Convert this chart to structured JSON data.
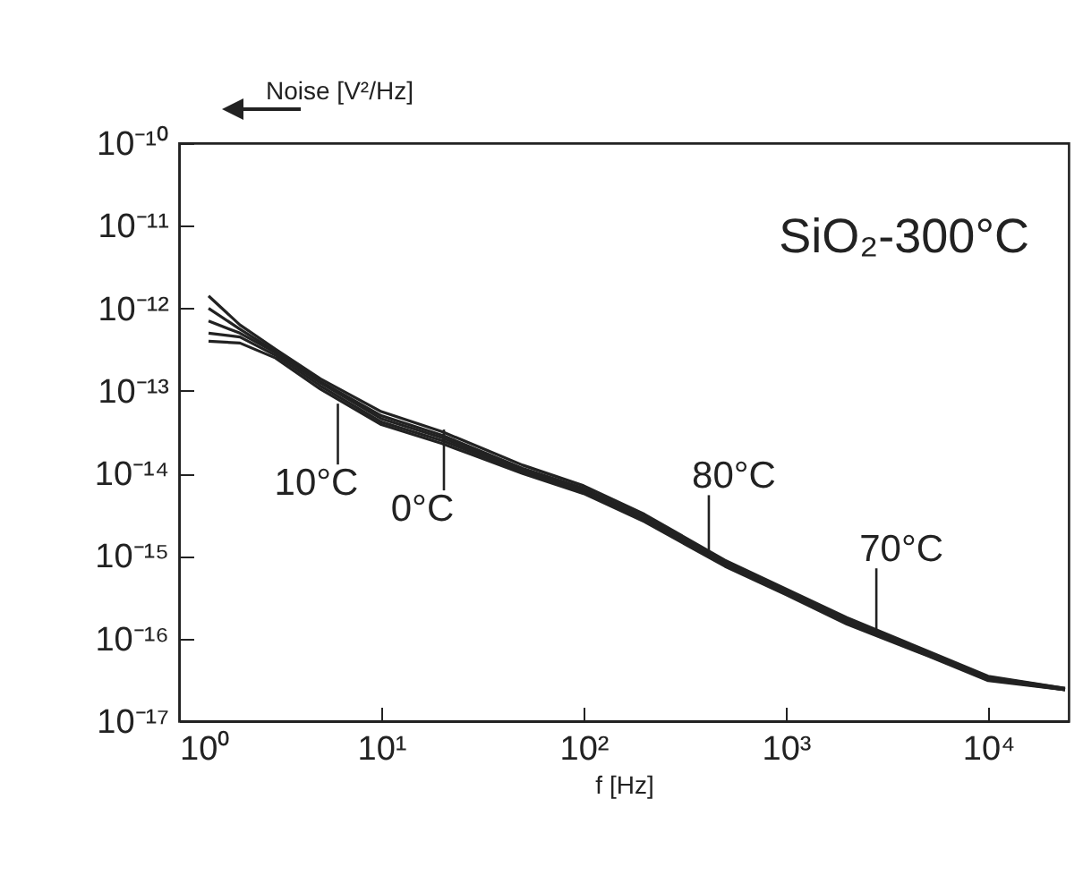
{
  "chart_data": {
    "type": "line",
    "xlabel": "f [Hz]",
    "ylabel": "Noise [V²/Hz]",
    "log": "xy",
    "grid": false,
    "legend": false,
    "marker": "none",
    "line_style": "solid",
    "xlim": [
      1,
      25000
    ],
    "xticks": [
      {
        "value": 1,
        "label": "10⁰"
      },
      {
        "value": 10,
        "label": "10¹"
      },
      {
        "value": 100,
        "label": "10²"
      },
      {
        "value": 1000,
        "label": "10³"
      },
      {
        "value": 10000,
        "label": "10⁴"
      }
    ],
    "ylim": [
      1e-17,
      1e-10
    ],
    "yticks": [
      {
        "value": 1e-17,
        "label": "10⁻¹⁷"
      },
      {
        "value": 1e-16,
        "label": "10⁻¹⁶"
      },
      {
        "value": 1e-15,
        "label": "10⁻¹⁵"
      },
      {
        "value": 1e-14,
        "label": "10⁻¹⁴"
      },
      {
        "value": 1e-13,
        "label": "10⁻¹³"
      },
      {
        "value": 1e-12,
        "label": "10⁻¹²"
      },
      {
        "value": 1e-11,
        "label": "10⁻¹¹"
      },
      {
        "value": 1e-10,
        "label": "10⁻¹⁰"
      }
    ],
    "x": [
      1.4,
      2,
      3,
      5,
      10,
      20,
      50,
      100,
      200,
      500,
      1000,
      2000,
      5000,
      10000,
      24000
    ],
    "series": [
      {
        "color": "#222222",
        "values": [
          1.41e-12,
          6.3e-13,
          3.2e-13,
          1.4e-13,
          5.6e-14,
          3.2e-14,
          1.26e-14,
          7.1e-15,
          3.2e-15,
          8.9e-16,
          4e-16,
          1.8e-16,
          7.1e-17,
          3.5e-17,
          2.5e-17
        ]
      },
      {
        "color": "#222222",
        "values": [
          1e-12,
          5.6e-13,
          3e-13,
          1.3e-13,
          5e-14,
          2.9e-14,
          1.15e-14,
          6.6e-15,
          3e-15,
          8.5e-16,
          3.8e-16,
          1.7e-16,
          6.8e-17,
          3.4e-17,
          2.5e-17
        ]
      },
      {
        "color": "#222222",
        "values": [
          7e-13,
          5e-13,
          2.9e-13,
          1.25e-13,
          4.6e-14,
          2.7e-14,
          1.1e-14,
          6.3e-15,
          2.8e-15,
          8e-16,
          3.6e-16,
          1.6e-16,
          6.5e-17,
          3.3e-17,
          2.4e-17
        ]
      },
      {
        "color": "#222222",
        "values": [
          5e-13,
          4.5e-13,
          2.7e-13,
          1.15e-13,
          4.2e-14,
          2.5e-14,
          1.05e-14,
          6e-15,
          2.7e-15,
          7.8e-16,
          3.5e-16,
          1.55e-16,
          6.3e-17,
          3.2e-17,
          2.4e-17
        ]
      },
      {
        "color": "#222222",
        "values": [
          4e-13,
          3.8e-13,
          2.5e-13,
          1.05e-13,
          3.9e-14,
          2.3e-14,
          1e-14,
          5.7e-15,
          2.6e-15,
          7.5e-16,
          3.4e-16,
          1.5e-16,
          6.2e-17,
          3.1e-17,
          2.4e-17
        ]
      }
    ],
    "annotations": [
      "SiO₂-300°C",
      {
        "text": "10°C",
        "x": 6.1,
        "y": 7e-14
      },
      {
        "text": "0°C",
        "x": 20.4,
        "y": 3.4e-14
      },
      {
        "text": "80°C",
        "x": 416,
        "y": 1e-15
      },
      {
        "text": "70°C",
        "x": 2800,
        "y": 1.3e-16
      }
    ]
  }
}
